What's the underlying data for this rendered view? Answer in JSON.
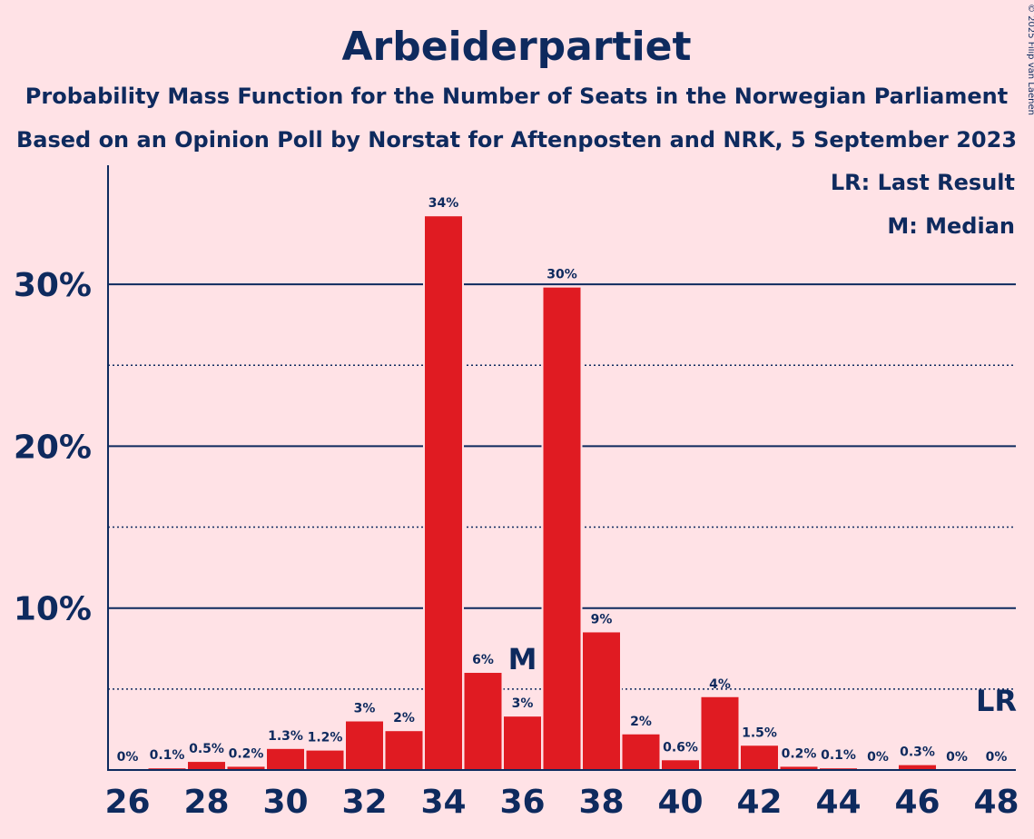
{
  "chart_data": {
    "type": "bar",
    "title": "Arbeiderpartiet",
    "subtitle_1": "Probability Mass Function for the Number of Seats in the Norwegian Parliament",
    "subtitle_2": "Based on an Opinion Poll by Norstat for Aftenposten and NRK, 5 September 2023",
    "copyright": "© 2025 Filip van Laenen",
    "legend": {
      "last_result": "LR: Last Result",
      "median": "M: Median",
      "placement": "top-right"
    },
    "categories": [
      26,
      27,
      28,
      29,
      30,
      31,
      32,
      33,
      34,
      35,
      36,
      37,
      38,
      39,
      40,
      41,
      42,
      43,
      44,
      45,
      46,
      47,
      48
    ],
    "values": [
      0,
      0.1,
      0.5,
      0.2,
      1.3,
      1.2,
      3.0,
      2.4,
      34.2,
      6.0,
      3.3,
      29.8,
      8.5,
      2.2,
      0.6,
      4.5,
      1.5,
      0.2,
      0.1,
      0,
      0.3,
      0,
      0
    ],
    "data_labels": [
      "0%",
      "0.1%",
      "0.5%",
      "0.2%",
      "1.3%",
      "1.2%",
      "3%",
      "2%",
      "34%",
      "6%",
      "3%",
      "30%",
      "9%",
      "2%",
      "0.6%",
      "4%",
      "1.5%",
      "0.2%",
      "0.1%",
      "0%",
      "0.3%",
      "0%",
      "0%"
    ],
    "x_tick_labels": [
      "26",
      "28",
      "30",
      "32",
      "34",
      "36",
      "38",
      "40",
      "42",
      "44",
      "46",
      "48"
    ],
    "y_tick_labels": [
      "10%",
      "20%",
      "30%"
    ],
    "y_ticks": [
      10,
      20,
      30
    ],
    "y_minor_ticks": [
      5,
      15,
      25
    ],
    "ylim": [
      0,
      37.5
    ],
    "median_seat": 36,
    "median_marker": "M",
    "last_result_seat": 48,
    "last_result_marker": "LR",
    "grid": true,
    "colors": {
      "bar": "#E01B22",
      "text": "#0E2A5E",
      "background": "#FFE2E6",
      "grid": "#0E2A5E"
    }
  }
}
